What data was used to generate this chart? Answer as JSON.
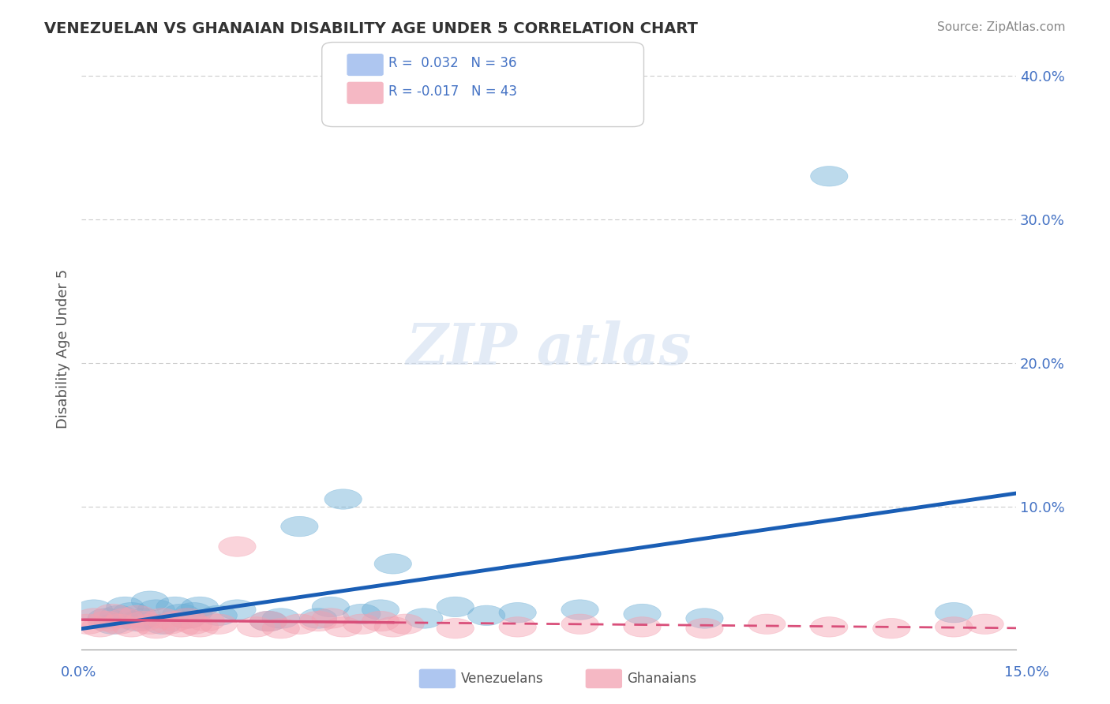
{
  "title": "VENEZUELAN VS GHANAIAN DISABILITY AGE UNDER 5 CORRELATION CHART",
  "source": "Source: ZipAtlas.com",
  "ylabel": "Disability Age Under 5",
  "xlim": [
    0.0,
    0.15
  ],
  "ylim": [
    0.0,
    0.42
  ],
  "venezuelan_color": "#6baed6",
  "ghanaian_color": "#f4a0b0",
  "trend_venezuelan_color": "#1a5eb5",
  "trend_ghanaian_color": "#d94f7a",
  "background_color": "#ffffff",
  "grid_color": "#cccccc",
  "venezuelan_points": [
    [
      0.002,
      0.028
    ],
    [
      0.004,
      0.022
    ],
    [
      0.005,
      0.018
    ],
    [
      0.006,
      0.024
    ],
    [
      0.007,
      0.03
    ],
    [
      0.008,
      0.026
    ],
    [
      0.009,
      0.02
    ],
    [
      0.01,
      0.022
    ],
    [
      0.011,
      0.034
    ],
    [
      0.012,
      0.028
    ],
    [
      0.013,
      0.018
    ],
    [
      0.015,
      0.03
    ],
    [
      0.016,
      0.025
    ],
    [
      0.017,
      0.022
    ],
    [
      0.018,
      0.026
    ],
    [
      0.019,
      0.03
    ],
    [
      0.022,
      0.024
    ],
    [
      0.025,
      0.028
    ],
    [
      0.03,
      0.02
    ],
    [
      0.032,
      0.022
    ],
    [
      0.035,
      0.086
    ],
    [
      0.038,
      0.022
    ],
    [
      0.04,
      0.03
    ],
    [
      0.042,
      0.105
    ],
    [
      0.045,
      0.025
    ],
    [
      0.048,
      0.028
    ],
    [
      0.05,
      0.06
    ],
    [
      0.055,
      0.022
    ],
    [
      0.06,
      0.03
    ],
    [
      0.065,
      0.024
    ],
    [
      0.07,
      0.026
    ],
    [
      0.08,
      0.028
    ],
    [
      0.09,
      0.025
    ],
    [
      0.1,
      0.022
    ],
    [
      0.12,
      0.33
    ],
    [
      0.14,
      0.026
    ]
  ],
  "ghanaian_points": [
    [
      0.001,
      0.018
    ],
    [
      0.002,
      0.022
    ],
    [
      0.003,
      0.016
    ],
    [
      0.004,
      0.02
    ],
    [
      0.005,
      0.025
    ],
    [
      0.006,
      0.018
    ],
    [
      0.007,
      0.022
    ],
    [
      0.008,
      0.016
    ],
    [
      0.009,
      0.024
    ],
    [
      0.01,
      0.02
    ],
    [
      0.011,
      0.018
    ],
    [
      0.012,
      0.015
    ],
    [
      0.013,
      0.022
    ],
    [
      0.014,
      0.018
    ],
    [
      0.015,
      0.02
    ],
    [
      0.016,
      0.016
    ],
    [
      0.017,
      0.022
    ],
    [
      0.018,
      0.018
    ],
    [
      0.019,
      0.016
    ],
    [
      0.02,
      0.02
    ],
    [
      0.022,
      0.018
    ],
    [
      0.025,
      0.072
    ],
    [
      0.028,
      0.016
    ],
    [
      0.03,
      0.02
    ],
    [
      0.032,
      0.015
    ],
    [
      0.035,
      0.018
    ],
    [
      0.038,
      0.02
    ],
    [
      0.04,
      0.022
    ],
    [
      0.042,
      0.016
    ],
    [
      0.045,
      0.018
    ],
    [
      0.048,
      0.02
    ],
    [
      0.05,
      0.016
    ],
    [
      0.052,
      0.018
    ],
    [
      0.06,
      0.015
    ],
    [
      0.07,
      0.016
    ],
    [
      0.08,
      0.018
    ],
    [
      0.09,
      0.016
    ],
    [
      0.1,
      0.015
    ],
    [
      0.11,
      0.018
    ],
    [
      0.12,
      0.016
    ],
    [
      0.13,
      0.015
    ],
    [
      0.14,
      0.016
    ],
    [
      0.145,
      0.018
    ]
  ]
}
